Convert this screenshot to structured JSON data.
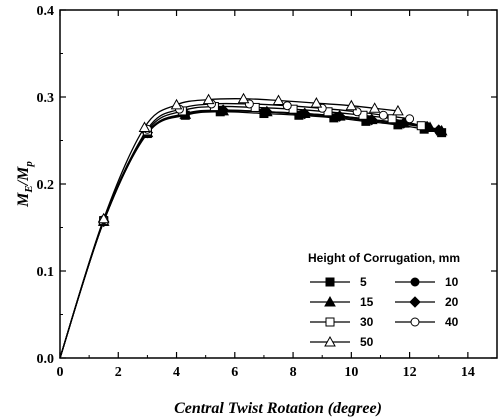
{
  "chart_data": {
    "type": "line",
    "xlabel": "Central Twist Rotation (degree)",
    "ylabel_main": "M",
    "ylabel_sub1": "E",
    "ylabel_slash": "/M",
    "ylabel_sub2": "p",
    "xlim": [
      0,
      15
    ],
    "ylim": [
      0,
      0.4
    ],
    "xticks": [
      0,
      2,
      4,
      6,
      8,
      10,
      12,
      14
    ],
    "yticks": [
      0.0,
      0.1,
      0.2,
      0.3,
      0.4
    ],
    "xtick_labels": [
      "0",
      "2",
      "4",
      "6",
      "8",
      "10",
      "12",
      "14"
    ],
    "ytick_labels": [
      "0.0",
      "0.1",
      "0.2",
      "0.3",
      "0.4"
    ],
    "grid": false,
    "legend": {
      "title": "Height of Corrugation, mm",
      "placement": "bottom-right",
      "columns": 2
    },
    "series": [
      {
        "name": "5",
        "marker": "square-filled",
        "x": [
          0,
          1.5,
          3.0,
          4.3,
          5.5,
          7.0,
          8.2,
          9.4,
          10.5,
          11.6,
          12.5,
          13.1
        ],
        "y": [
          0,
          0.157,
          0.258,
          0.279,
          0.283,
          0.281,
          0.279,
          0.276,
          0.272,
          0.268,
          0.263,
          0.259
        ]
      },
      {
        "name": "10",
        "marker": "circle-filled",
        "x": [
          0,
          1.5,
          3.0,
          4.3,
          5.5,
          7.0,
          8.3,
          9.5,
          10.6,
          11.7,
          12.6,
          13.0
        ],
        "y": [
          0,
          0.157,
          0.259,
          0.28,
          0.284,
          0.283,
          0.28,
          0.277,
          0.273,
          0.269,
          0.265,
          0.261
        ]
      },
      {
        "name": "15",
        "marker": "triangle-filled",
        "x": [
          0,
          1.5,
          3.0,
          4.3,
          5.6,
          7.1,
          8.4,
          9.6,
          10.7,
          11.8,
          12.7,
          13.1
        ],
        "y": [
          0,
          0.157,
          0.259,
          0.28,
          0.284,
          0.283,
          0.281,
          0.278,
          0.274,
          0.27,
          0.265,
          0.261
        ]
      },
      {
        "name": "20",
        "marker": "diamond-filled",
        "x": [
          0,
          1.5,
          3.0,
          4.3,
          5.6,
          7.1,
          8.4,
          9.6,
          10.7,
          11.8,
          12.6,
          13.0
        ],
        "y": [
          0,
          0.157,
          0.259,
          0.281,
          0.285,
          0.283,
          0.281,
          0.278,
          0.274,
          0.27,
          0.266,
          0.262
        ]
      },
      {
        "name": "30",
        "marker": "square-open",
        "x": [
          0,
          1.5,
          3.0,
          4.2,
          5.3,
          6.7,
          8.0,
          9.2,
          10.4,
          11.4,
          12.4
        ],
        "y": [
          0,
          0.158,
          0.261,
          0.284,
          0.289,
          0.288,
          0.286,
          0.283,
          0.279,
          0.275,
          0.267
        ]
      },
      {
        "name": "40",
        "marker": "circle-open",
        "x": [
          0,
          1.5,
          3.0,
          4.1,
          5.2,
          6.5,
          7.8,
          9.0,
          10.2,
          11.1,
          12.0
        ],
        "y": [
          0,
          0.159,
          0.263,
          0.286,
          0.292,
          0.292,
          0.29,
          0.287,
          0.283,
          0.279,
          0.275
        ]
      },
      {
        "name": "50",
        "marker": "triangle-open",
        "x": [
          0,
          1.5,
          2.9,
          4.0,
          5.1,
          6.3,
          7.5,
          8.8,
          10.0,
          10.8,
          11.6
        ],
        "y": [
          0,
          0.16,
          0.265,
          0.291,
          0.297,
          0.298,
          0.296,
          0.293,
          0.29,
          0.287,
          0.284
        ]
      }
    ]
  }
}
